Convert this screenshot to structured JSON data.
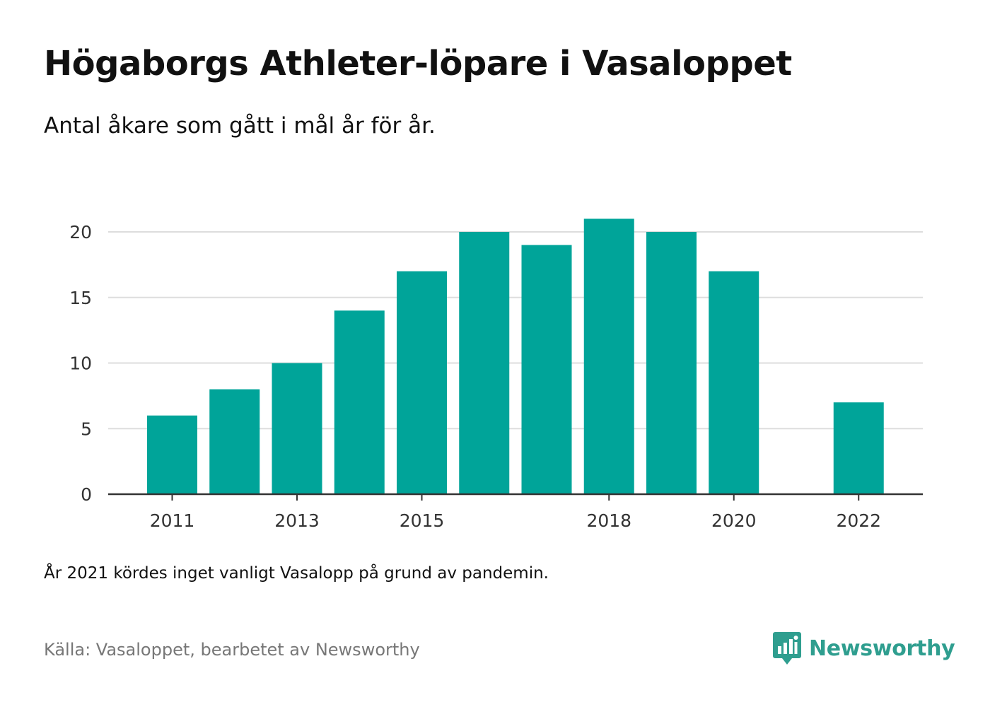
{
  "header": {
    "title": "Högaborgs Athleter-löpare i Vasaloppet",
    "subtitle": "Antal åkare som gått i mål år för år."
  },
  "footer": {
    "note": "År 2021 kördes inget vanligt Vasalopp på grund av pandemin.",
    "source": "Källa: Vasaloppet, bearbetet av Newsworthy",
    "brand": "Newsworthy",
    "brand_icon": "newsworthy-logo-icon"
  },
  "colors": {
    "bar": "#00a499",
    "grid": "#dddddd",
    "axis": "#333333",
    "brand": "#2f9e8f"
  },
  "chart_data": {
    "type": "bar",
    "categories": [
      "2011",
      "2012",
      "2013",
      "2014",
      "2015",
      "2016",
      "2017",
      "2018",
      "2019",
      "2020",
      "2021",
      "2022"
    ],
    "values": [
      6,
      8,
      10,
      14,
      17,
      20,
      19,
      21,
      20,
      17,
      null,
      7
    ],
    "x_tick_labels": [
      "2011",
      "2013",
      "2015",
      "2018",
      "2020",
      "2022"
    ],
    "y_ticks": [
      0,
      5,
      10,
      15,
      20
    ],
    "ylim": [
      0,
      21
    ],
    "grid": true,
    "legend": "none"
  }
}
